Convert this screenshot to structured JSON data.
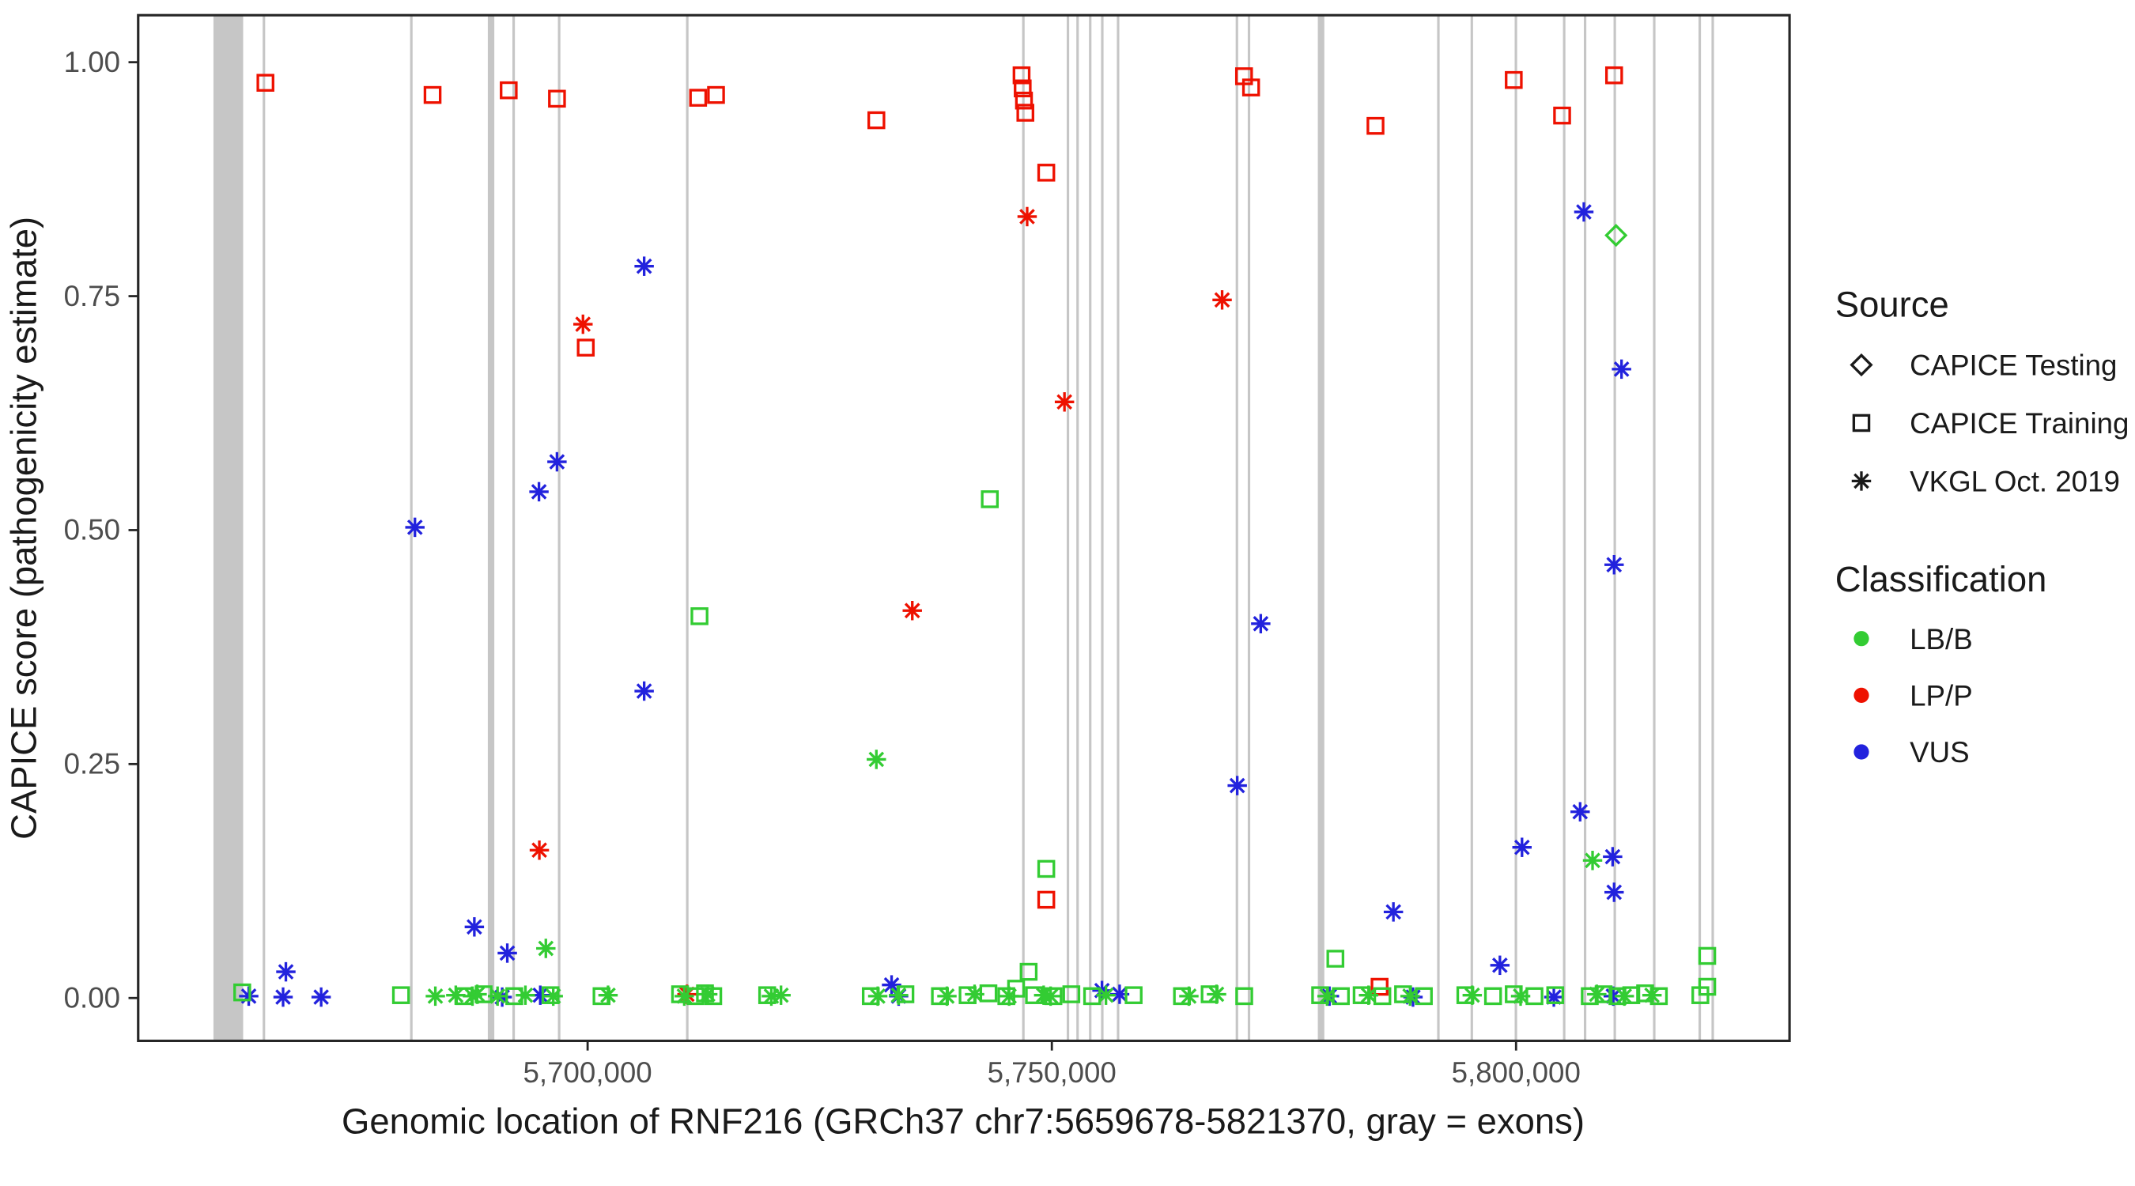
{
  "figure": {
    "x_axis_title": "Genomic location of RNF216 (GRCh37 chr7:5659678-5821370, gray = exons)",
    "y_axis_title": "CAPICE score (pathogenicity estimate)"
  },
  "legend": {
    "source_title": "Source",
    "source_items": [
      {
        "label": "CAPICE Testing",
        "shape": "di"
      },
      {
        "label": "CAPICE Training",
        "shape": "sq"
      },
      {
        "label": "VKGL Oct. 2019",
        "shape": "as"
      }
    ],
    "classification_title": "Classification",
    "classification_items": [
      {
        "label": "LB/B",
        "key": "G"
      },
      {
        "label": "LP/P",
        "key": "R"
      },
      {
        "label": "VUS",
        "key": "B"
      }
    ]
  },
  "chart_data": {
    "type": "scatter",
    "title": "",
    "xlabel": "Genomic location of RNF216 (GRCh37 chr7:5659678-5821370, gray = exons)",
    "ylabel": "CAPICE score (pathogenicity estimate)",
    "x_domain": [
      5651593,
      5829455
    ],
    "gene_range": [
      5659678,
      5821370
    ],
    "y_domain": [
      0,
      1
    ],
    "grid": "off",
    "legend_position": "right",
    "x_ticks": [
      {
        "v": 5700000,
        "label": "5,700,000"
      },
      {
        "v": 5750000,
        "label": "5,750,000"
      },
      {
        "v": 5800000,
        "label": "5,800,000"
      }
    ],
    "y_ticks": [
      {
        "v": 0.0,
        "label": "0.00"
      },
      {
        "v": 0.25,
        "label": "0.25"
      },
      {
        "v": 0.5,
        "label": "0.50"
      },
      {
        "v": 0.75,
        "label": "0.75"
      },
      {
        "v": 1.0,
        "label": "1.00"
      }
    ],
    "colors": {
      "G": "#33cc33",
      "R": "#ee1100",
      "B": "#2222dd",
      "exon": "#c6c6c6",
      "axis": "#262626",
      "legend_marker": "#1a1a1a"
    },
    "shape_meaning": {
      "di": "CAPICE Testing",
      "sq": "CAPICE Training",
      "as": "VKGL Oct. 2019"
    },
    "class_meaning": {
      "G": "LB/B",
      "R": "LP/P",
      "B": "VUS"
    },
    "exons": [
      [
        5659700,
        5662900
      ],
      [
        5665000,
        5665180
      ],
      [
        5680880,
        5681060
      ],
      [
        5689250,
        5689950
      ],
      [
        5691900,
        5692080
      ],
      [
        5696800,
        5696980
      ],
      [
        5710600,
        5710780
      ],
      [
        5746800,
        5746950
      ],
      [
        5751600,
        5751760
      ],
      [
        5752640,
        5752800
      ],
      [
        5754000,
        5754160
      ],
      [
        5755300,
        5755460
      ],
      [
        5757000,
        5757160
      ],
      [
        5769800,
        5769960
      ],
      [
        5771100,
        5771260
      ],
      [
        5778650,
        5779350
      ],
      [
        5791500,
        5791660
      ],
      [
        5795100,
        5795260
      ],
      [
        5799850,
        5800010
      ],
      [
        5805050,
        5805210
      ],
      [
        5807300,
        5807460
      ],
      [
        5810500,
        5810660
      ],
      [
        5814750,
        5814910
      ],
      [
        5819650,
        5819810
      ],
      [
        5821050,
        5821210
      ]
    ],
    "points": [
      [
        5665300,
        0.978,
        "sq",
        "R"
      ],
      [
        5683300,
        0.965,
        "sq",
        "R"
      ],
      [
        5691500,
        0.97,
        "sq",
        "R"
      ],
      [
        5696700,
        0.961,
        "sq",
        "R"
      ],
      [
        5699800,
        0.695,
        "sq",
        "R"
      ],
      [
        5711900,
        0.962,
        "sq",
        "R"
      ],
      [
        5713830,
        0.965,
        "sq",
        "R"
      ],
      [
        5731100,
        0.938,
        "sq",
        "R"
      ],
      [
        5746740,
        0.986,
        "sq",
        "R"
      ],
      [
        5746860,
        0.972,
        "sq",
        "R"
      ],
      [
        5747000,
        0.959,
        "sq",
        "R"
      ],
      [
        5747150,
        0.946,
        "sq",
        "R"
      ],
      [
        5749400,
        0.882,
        "sq",
        "R"
      ],
      [
        5770700,
        0.985,
        "sq",
        "R"
      ],
      [
        5771460,
        0.973,
        "sq",
        "R"
      ],
      [
        5784860,
        0.932,
        "sq",
        "R"
      ],
      [
        5799750,
        0.981,
        "sq",
        "R"
      ],
      [
        5804960,
        0.943,
        "sq",
        "R"
      ],
      [
        5810560,
        0.986,
        "sq",
        "R"
      ],
      [
        5749400,
        0.105,
        "sq",
        "R"
      ],
      [
        5785300,
        0.012,
        "sq",
        "R"
      ],
      [
        5699500,
        0.72,
        "as",
        "R"
      ],
      [
        5694800,
        0.158,
        "as",
        "R"
      ],
      [
        5734970,
        0.414,
        "as",
        "R"
      ],
      [
        5747340,
        0.835,
        "as",
        "R"
      ],
      [
        5751360,
        0.637,
        "as",
        "R"
      ],
      [
        5768340,
        0.746,
        "as",
        "R"
      ],
      [
        5710700,
        0.004,
        "as",
        "R"
      ],
      [
        5681400,
        0.503,
        "as",
        "B"
      ],
      [
        5694760,
        0.541,
        "as",
        "B"
      ],
      [
        5696700,
        0.573,
        "as",
        "B"
      ],
      [
        5706090,
        0.782,
        "as",
        "B"
      ],
      [
        5706090,
        0.328,
        "as",
        "B"
      ],
      [
        5687800,
        0.076,
        "as",
        "B"
      ],
      [
        5691350,
        0.048,
        "as",
        "B"
      ],
      [
        5667500,
        0.028,
        "as",
        "B"
      ],
      [
        5663500,
        0.002,
        "as",
        "B"
      ],
      [
        5667200,
        0.001,
        "as",
        "B"
      ],
      [
        5671300,
        0.001,
        "as",
        "B"
      ],
      [
        5690800,
        0.001,
        "as",
        "B"
      ],
      [
        5694900,
        0.003,
        "as",
        "B"
      ],
      [
        5732740,
        0.014,
        "as",
        "B"
      ],
      [
        5733500,
        0.002,
        "as",
        "B"
      ],
      [
        5755400,
        0.008,
        "as",
        "B"
      ],
      [
        5757300,
        0.004,
        "as",
        "B"
      ],
      [
        5772500,
        0.4,
        "as",
        "B"
      ],
      [
        5769970,
        0.227,
        "as",
        "B"
      ],
      [
        5779900,
        0.002,
        "as",
        "B"
      ],
      [
        5786790,
        0.092,
        "as",
        "B"
      ],
      [
        5788900,
        0.001,
        "as",
        "B"
      ],
      [
        5798260,
        0.035,
        "as",
        "B"
      ],
      [
        5800640,
        0.161,
        "as",
        "B"
      ],
      [
        5806900,
        0.199,
        "as",
        "B"
      ],
      [
        5807300,
        0.84,
        "as",
        "B"
      ],
      [
        5810400,
        0.151,
        "as",
        "B"
      ],
      [
        5810560,
        0.113,
        "as",
        "B"
      ],
      [
        5810560,
        0.463,
        "as",
        "B"
      ],
      [
        5811360,
        0.672,
        "as",
        "B"
      ],
      [
        5804070,
        0.001,
        "as",
        "B"
      ],
      [
        5810470,
        0.002,
        "as",
        "B"
      ],
      [
        5810770,
        0.815,
        "di",
        "G"
      ],
      [
        5743320,
        0.533,
        "sq",
        "G"
      ],
      [
        5712050,
        0.408,
        "sq",
        "G"
      ],
      [
        5749400,
        0.138,
        "sq",
        "G"
      ],
      [
        5747500,
        0.028,
        "sq",
        "G"
      ],
      [
        5780540,
        0.042,
        "sq",
        "G"
      ],
      [
        5820590,
        0.045,
        "sq",
        "G"
      ],
      [
        5820590,
        0.012,
        "sq",
        "G"
      ],
      [
        5731100,
        0.255,
        "as",
        "G"
      ],
      [
        5695500,
        0.053,
        "as",
        "G"
      ],
      [
        5808240,
        0.147,
        "as",
        "G"
      ],
      [
        5662800,
        0.006,
        "sq",
        "G"
      ],
      [
        5679900,
        0.003,
        "sq",
        "G"
      ],
      [
        5686700,
        0.002,
        "sq",
        "G"
      ],
      [
        5688800,
        0.004,
        "sq",
        "G"
      ],
      [
        5692100,
        0.002,
        "sq",
        "G"
      ],
      [
        5696000,
        0.003,
        "sq",
        "G"
      ],
      [
        5701500,
        0.002,
        "sq",
        "G"
      ],
      [
        5709960,
        0.004,
        "sq",
        "G"
      ],
      [
        5711600,
        0.002,
        "sq",
        "G"
      ],
      [
        5712640,
        0.005,
        "sq",
        "G"
      ],
      [
        5713530,
        0.002,
        "sq",
        "G"
      ],
      [
        5719340,
        0.003,
        "sq",
        "G"
      ],
      [
        5730500,
        0.002,
        "sq",
        "G"
      ],
      [
        5734230,
        0.004,
        "sq",
        "G"
      ],
      [
        5737950,
        0.002,
        "sq",
        "G"
      ],
      [
        5740930,
        0.003,
        "sq",
        "G"
      ],
      [
        5743170,
        0.005,
        "sq",
        "G"
      ],
      [
        5745100,
        0.002,
        "sq",
        "G"
      ],
      [
        5746150,
        0.01,
        "sq",
        "G"
      ],
      [
        5748080,
        0.003,
        "sq",
        "G"
      ],
      [
        5750170,
        0.002,
        "sq",
        "G"
      ],
      [
        5752100,
        0.004,
        "sq",
        "G"
      ],
      [
        5754340,
        0.002,
        "sq",
        "G"
      ],
      [
        5758810,
        0.003,
        "sq",
        "G"
      ],
      [
        5764020,
        0.002,
        "sq",
        "G"
      ],
      [
        5767000,
        0.004,
        "sq",
        "G"
      ],
      [
        5770720,
        0.002,
        "sq",
        "G"
      ],
      [
        5778900,
        0.003,
        "sq",
        "G"
      ],
      [
        5781130,
        0.002,
        "sq",
        "G"
      ],
      [
        5783370,
        0.003,
        "sq",
        "G"
      ],
      [
        5785600,
        0.002,
        "sq",
        "G"
      ],
      [
        5787830,
        0.004,
        "sq",
        "G"
      ],
      [
        5790070,
        0.002,
        "sq",
        "G"
      ],
      [
        5794540,
        0.003,
        "sq",
        "G"
      ],
      [
        5797520,
        0.002,
        "sq",
        "G"
      ],
      [
        5799750,
        0.004,
        "sq",
        "G"
      ],
      [
        5801980,
        0.002,
        "sq",
        "G"
      ],
      [
        5804220,
        0.003,
        "sq",
        "G"
      ],
      [
        5807940,
        0.002,
        "sq",
        "G"
      ],
      [
        5809430,
        0.004,
        "sq",
        "G"
      ],
      [
        5810920,
        0.002,
        "sq",
        "G"
      ],
      [
        5812410,
        0.003,
        "sq",
        "G"
      ],
      [
        5813900,
        0.005,
        "sq",
        "G"
      ],
      [
        5815380,
        0.002,
        "sq",
        "G"
      ],
      [
        5819850,
        0.003,
        "sq",
        "G"
      ],
      [
        5683600,
        0.002,
        "as",
        "G"
      ],
      [
        5685800,
        0.003,
        "as",
        "G"
      ],
      [
        5687600,
        0.002,
        "as",
        "G"
      ],
      [
        5688100,
        0.004,
        "as",
        "G"
      ],
      [
        5690300,
        0.002,
        "as",
        "G"
      ],
      [
        5693300,
        0.003,
        "as",
        "G"
      ],
      [
        5696300,
        0.002,
        "as",
        "G"
      ],
      [
        5702200,
        0.003,
        "as",
        "G"
      ],
      [
        5710410,
        0.002,
        "as",
        "G"
      ],
      [
        5712940,
        0.004,
        "as",
        "G"
      ],
      [
        5719790,
        0.002,
        "as",
        "G"
      ],
      [
        5720830,
        0.003,
        "as",
        "G"
      ],
      [
        5731250,
        0.002,
        "as",
        "G"
      ],
      [
        5733490,
        0.003,
        "as",
        "G"
      ],
      [
        5738700,
        0.002,
        "as",
        "G"
      ],
      [
        5741680,
        0.004,
        "as",
        "G"
      ],
      [
        5745400,
        0.002,
        "as",
        "G"
      ],
      [
        5749120,
        0.003,
        "as",
        "G"
      ],
      [
        5749870,
        0.002,
        "as",
        "G"
      ],
      [
        5755830,
        0.003,
        "as",
        "G"
      ],
      [
        5764760,
        0.002,
        "as",
        "G"
      ],
      [
        5767740,
        0.004,
        "as",
        "G"
      ],
      [
        5779640,
        0.002,
        "as",
        "G"
      ],
      [
        5784110,
        0.003,
        "as",
        "G"
      ],
      [
        5788580,
        0.002,
        "as",
        "G"
      ],
      [
        5795280,
        0.003,
        "as",
        "G"
      ],
      [
        5800490,
        0.002,
        "as",
        "G"
      ],
      [
        5808690,
        0.004,
        "as",
        "G"
      ],
      [
        5811660,
        0.002,
        "as",
        "G"
      ],
      [
        5814640,
        0.003,
        "as",
        "G"
      ]
    ]
  }
}
